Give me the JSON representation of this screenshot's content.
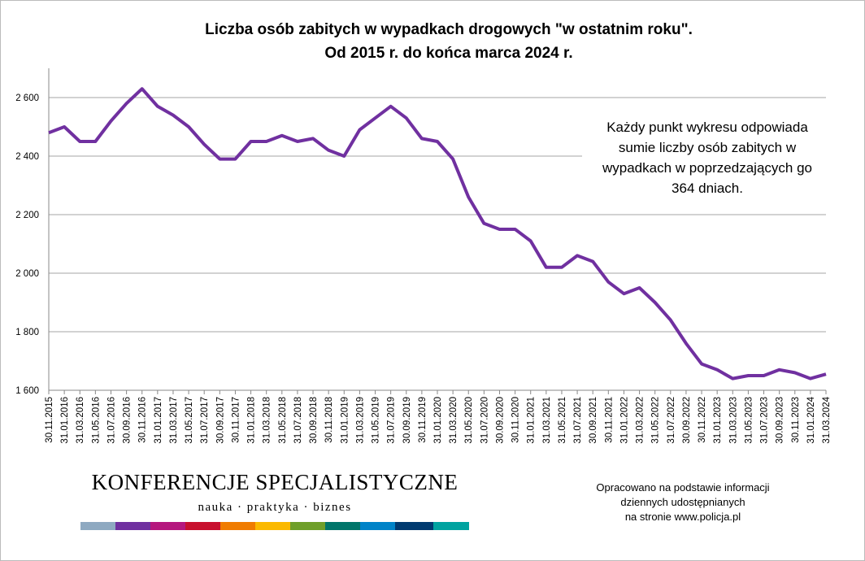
{
  "chart_data": {
    "type": "line",
    "title": "Liczba osób zabitych w wypadkach drogowych \"w ostatnim roku\".",
    "subtitle": "Od 2015 r. do końca marca 2024 r.",
    "annotation": [
      "Każdy punkt wykresu odpowiada",
      "sumie liczby osób zabitych w",
      "wypadkach w poprzedzających go",
      "364 dniach."
    ],
    "source": [
      "Opracowano na podstawie informacji",
      "dziennych udostępnianych",
      "na stronie www.policja.pl"
    ],
    "logo": {
      "name": "KONFERENCJE SPECJALISTYCZNE",
      "tagline": "nauka · praktyka · biznes"
    },
    "categories": [
      "30.11.2015",
      "31.01.2016",
      "31.03.2016",
      "31.05.2016",
      "31.07.2016",
      "30.09.2016",
      "30.11.2016",
      "31.01.2017",
      "31.03.2017",
      "31.05.2017",
      "31.07.2017",
      "30.09.2017",
      "30.11.2017",
      "31.01.2018",
      "31.03.2018",
      "31.05.2018",
      "31.07.2018",
      "30.09.2018",
      "30.11.2018",
      "31.01.2019",
      "31.03.2019",
      "31.05.2019",
      "31.07.2019",
      "30.09.2019",
      "30.11.2019",
      "31.01.2020",
      "31.03.2020",
      "31.05.2020",
      "31.07.2020",
      "30.09.2020",
      "30.11.2020",
      "31.01.2021",
      "31.03.2021",
      "31.05.2021",
      "31.07.2021",
      "30.09.2021",
      "30.11.2021",
      "31.01.2022",
      "31.03.2022",
      "31.05.2022",
      "31.07.2022",
      "30.09.2022",
      "30.11.2022",
      "31.01.2023",
      "31.03.2023",
      "31.05.2023",
      "31.07.2023",
      "30.09.2023",
      "30.11.2023",
      "31.01.2024",
      "31.03.2024"
    ],
    "series": [
      {
        "color": "#7030a0",
        "values": [
          2480,
          2500,
          2450,
          2450,
          2520,
          2580,
          2630,
          2570,
          2540,
          2500,
          2440,
          2390,
          2390,
          2450,
          2450,
          2470,
          2450,
          2460,
          2420,
          2400,
          2490,
          2530,
          2570,
          2530,
          2460,
          2450,
          2390,
          2260,
          2170,
          2150,
          2150,
          2110,
          2020,
          2020,
          2060,
          2040,
          1970,
          1930,
          1950,
          1900,
          1840,
          1760,
          1690,
          1670,
          1640,
          1650,
          1650,
          1670,
          1660,
          1640,
          1655
        ]
      }
    ],
    "ylim": [
      1600,
      2700
    ],
    "yticks": [
      {
        "value": 1600,
        "label": "1 600"
      },
      {
        "value": 1800,
        "label": "1 800"
      },
      {
        "value": 2000,
        "label": "2 000"
      },
      {
        "value": 2200,
        "label": "2 200"
      },
      {
        "value": 2400,
        "label": "2 400"
      },
      {
        "value": 2600,
        "label": "2 600"
      }
    ],
    "grid": true
  }
}
